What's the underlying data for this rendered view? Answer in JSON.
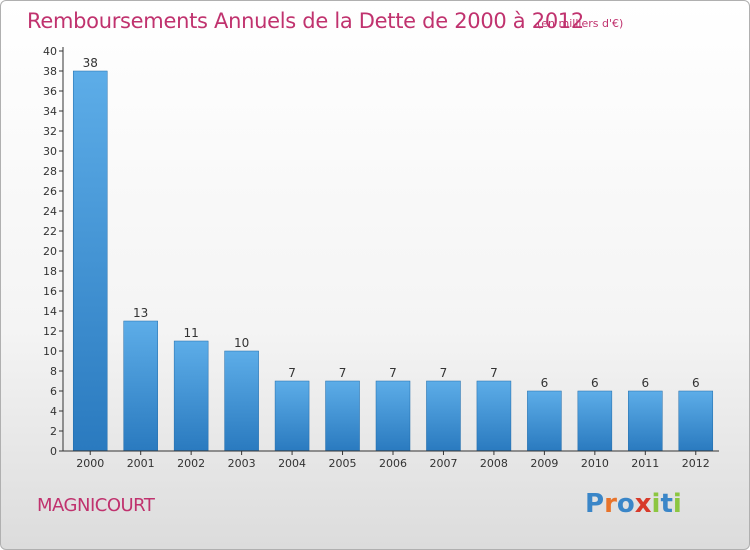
{
  "header": {
    "title": "Remboursements Annuels de la Dette de 2000 à 2012",
    "unit": "(en milliers d'€)"
  },
  "commune": "MAGNICOURT",
  "logo": {
    "text": "Proxiti",
    "letters": [
      {
        "ch": "P",
        "color": "#3a86c8"
      },
      {
        "ch": "r",
        "color": "#e8732a"
      },
      {
        "ch": "o",
        "color": "#3a86c8"
      },
      {
        "ch": "x",
        "color": "#d83a2a"
      },
      {
        "ch": "i",
        "color": "#8cc640"
      },
      {
        "ch": "t",
        "color": "#3a86c8"
      },
      {
        "ch": "i",
        "color": "#8cc640"
      }
    ]
  },
  "chart_data": {
    "type": "bar",
    "title": "Remboursements Annuels de la Dette de 2000 à 2012",
    "subtitle": "(en milliers d'€)",
    "categories": [
      "2000",
      "2001",
      "2002",
      "2003",
      "2004",
      "2005",
      "2006",
      "2007",
      "2008",
      "2009",
      "2010",
      "2011",
      "2012"
    ],
    "values": [
      38,
      13,
      11,
      10,
      7,
      7,
      7,
      7,
      7,
      6,
      6,
      6,
      6
    ],
    "ylim": [
      0,
      40
    ],
    "yticks": [
      0,
      2,
      4,
      6,
      8,
      10,
      12,
      14,
      16,
      18,
      20,
      22,
      24,
      26,
      28,
      30,
      32,
      34,
      36,
      38,
      40
    ],
    "grid": false,
    "colors": {
      "bar_dark": "#2a7abf",
      "bar_light": "#5dade8",
      "axis": "#333333",
      "text": "#333333",
      "accent": "#c0326e"
    }
  }
}
